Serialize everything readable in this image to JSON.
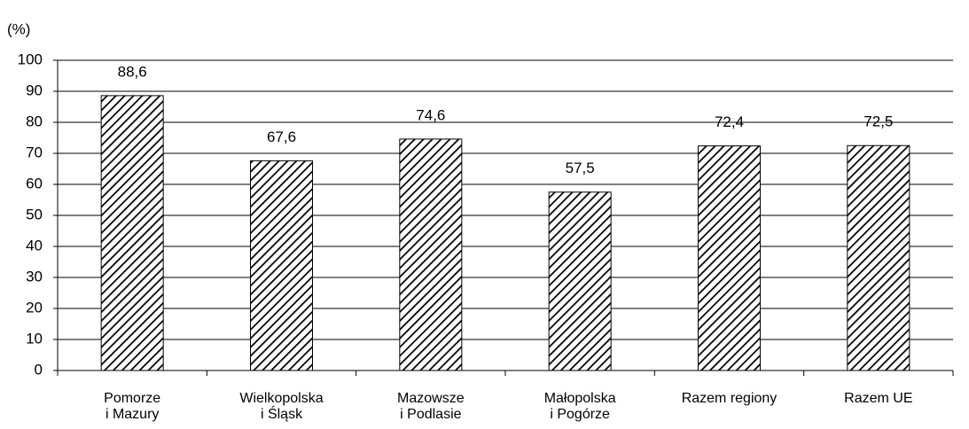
{
  "chart_data": {
    "type": "bar",
    "y_label": "(%)",
    "categories": [
      [
        "Pomorze",
        "i Mazury"
      ],
      [
        "Wielkopolska",
        "i Śląsk"
      ],
      [
        "Mazowsze",
        "i Podlasie"
      ],
      [
        "Małopolska",
        "i Pogórze"
      ],
      [
        "Razem regiony"
      ],
      [
        "Razem UE"
      ]
    ],
    "values": [
      88.6,
      67.6,
      74.6,
      57.5,
      72.4,
      72.5
    ],
    "value_labels": [
      "88,6",
      "67,6",
      "74,6",
      "57,5",
      "72,4",
      "72,5"
    ],
    "ylim": [
      0,
      100
    ],
    "yticks": [
      0,
      10,
      20,
      30,
      40,
      50,
      60,
      70,
      80,
      90,
      100
    ],
    "grid": true
  }
}
